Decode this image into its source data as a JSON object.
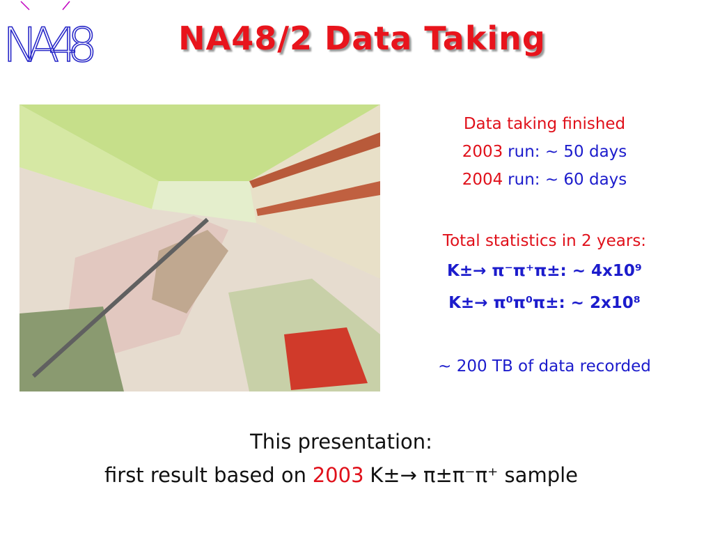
{
  "logo": "NA48",
  "title": "NA48/2 Data Taking",
  "summary": {
    "status": "Data taking finished",
    "runs": [
      {
        "year": "2003",
        "duration": "run:  ~ 50 days"
      },
      {
        "year": "2004",
        "duration": "run:  ~ 60 days"
      }
    ]
  },
  "statistics": {
    "heading": "Total statistics in 2 years:",
    "channels": [
      "K±→ π⁻π⁺π±: ~ 4x10⁹",
      "K±→ π⁰π⁰π±: ~ 2x10⁸"
    ]
  },
  "storage": "~ 200 TB of data recorded",
  "presentation": {
    "heading": "This presentation:",
    "prefix": "first result based on",
    "year": "2003",
    "sample": "K±→ π±π⁻π⁺ sample"
  }
}
